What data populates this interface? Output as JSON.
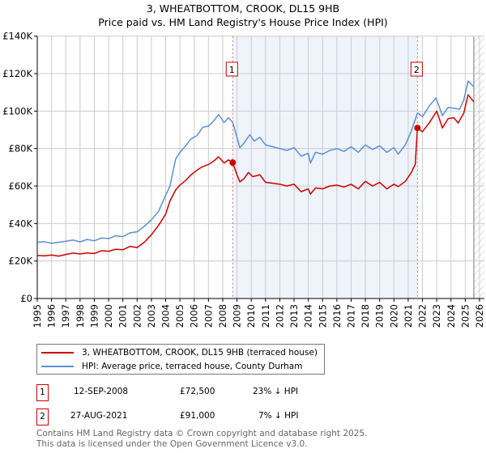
{
  "header": {
    "title": "3, WHEATBOTTOM, CROOK, DL15 9HB",
    "subtitle": "Price paid vs. HM Land Registry's House Price Index (HPI)"
  },
  "chart_data": {
    "type": "line",
    "title": "3, WHEATBOTTOM, CROOK, DL15 9HB",
    "subtitle": "Price paid vs. HM Land Registry's House Price Index (HPI)",
    "xlim": [
      1995,
      2026
    ],
    "ylim": [
      0,
      140000
    ],
    "x_ticks": [
      "1995",
      "1996",
      "1997",
      "1998",
      "1999",
      "2000",
      "2001",
      "2002",
      "2003",
      "2004",
      "2005",
      "2006",
      "2007",
      "2008",
      "2009",
      "2010",
      "2011",
      "2012",
      "2013",
      "2014",
      "2015",
      "2016",
      "2017",
      "2018",
      "2019",
      "2020",
      "2021",
      "2022",
      "2023",
      "2024",
      "2025",
      "2026"
    ],
    "y_ticks": [
      {
        "v": 0,
        "label": "£0"
      },
      {
        "v": 20000,
        "label": "£20K"
      },
      {
        "v": 40000,
        "label": "£40K"
      },
      {
        "v": 60000,
        "label": "£60K"
      },
      {
        "v": 80000,
        "label": "£80K"
      },
      {
        "v": 100000,
        "label": "£100K"
      },
      {
        "v": 120000,
        "label": "£120K"
      },
      {
        "v": 140000,
        "label": "£140K"
      }
    ],
    "grid": true,
    "shaded_period": [
      2008.7,
      2021.65
    ],
    "forecast_hatch_from": 2025.6,
    "series": [
      {
        "name": "3, WHEATBOTTOM, CROOK, DL15 9HB (terraced house)",
        "color": "#cc0000",
        "x": [
          1995,
          1995.5,
          1996,
          1996.5,
          1997,
          1997.5,
          1998,
          1998.5,
          1999,
          1999.5,
          2000,
          2000.5,
          2001,
          2001.5,
          2002,
          2002.5,
          2003,
          2003.5,
          2004,
          2004.3,
          2004.7,
          2005,
          2005.4,
          2005.75,
          2006.2,
          2006.6,
          2007,
          2007.4,
          2007.7,
          2008.1,
          2008.4,
          2008.7,
          2009,
          2009.2,
          2009.5,
          2009.8,
          2010.1,
          2010.6,
          2011,
          2011.5,
          2012,
          2012.5,
          2013,
          2013.5,
          2014,
          2014.15,
          2014.5,
          2015,
          2015.5,
          2016,
          2016.5,
          2017,
          2017.5,
          2018,
          2018.5,
          2019,
          2019.5,
          2020,
          2020.3,
          2020.8,
          2021.2,
          2021.5,
          2021.65,
          2022,
          2022.5,
          2023,
          2023.4,
          2023.8,
          2024.2,
          2024.5,
          2024.9,
          2025.2,
          2025.6
        ],
        "y": [
          23000,
          22800,
          23200,
          22600,
          23500,
          24200,
          23800,
          24300,
          24000,
          25500,
          25200,
          26300,
          26000,
          27800,
          27200,
          30000,
          34000,
          39000,
          45000,
          52000,
          57900,
          60500,
          63000,
          65800,
          68500,
          70400,
          71500,
          73500,
          75600,
          72300,
          74000,
          72500,
          66000,
          62200,
          64000,
          67300,
          65000,
          66000,
          62000,
          61500,
          61000,
          60000,
          61000,
          57000,
          58500,
          55700,
          59000,
          58500,
          60000,
          60500,
          59500,
          61000,
          58500,
          62500,
          60000,
          62000,
          58500,
          61000,
          59700,
          62500,
          67000,
          71700,
          91000,
          89000,
          94000,
          100000,
          91000,
          96000,
          96500,
          93700,
          99000,
          108700,
          105000
        ]
      },
      {
        "name": "HPI: Average price, terraced house, County Durham",
        "color": "#5b8fd4",
        "x": [
          1995,
          1995.5,
          1996,
          1996.5,
          1997,
          1997.5,
          1998,
          1998.5,
          1999,
          1999.5,
          2000,
          2000.5,
          2001,
          2001.5,
          2002,
          2002.5,
          2003,
          2003.5,
          2004,
          2004.3,
          2004.7,
          2005,
          2005.4,
          2005.75,
          2006.2,
          2006.6,
          2007,
          2007.4,
          2007.7,
          2008.1,
          2008.4,
          2008.7,
          2009,
          2009.2,
          2009.5,
          2009.9,
          2010.2,
          2010.6,
          2011,
          2011.5,
          2012,
          2012.5,
          2013,
          2013.5,
          2014,
          2014.15,
          2014.5,
          2015,
          2015.5,
          2016,
          2016.5,
          2017,
          2017.5,
          2018,
          2018.5,
          2019,
          2019.5,
          2020,
          2020.3,
          2020.8,
          2021.2,
          2021.65,
          2022,
          2022.5,
          2022.95,
          2023.4,
          2023.8,
          2024.2,
          2024.6,
          2024.9,
          2025.2,
          2025.6
        ],
        "y": [
          30000,
          30300,
          29500,
          30000,
          30500,
          31200,
          30200,
          31500,
          30800,
          32300,
          32000,
          33500,
          33000,
          35000,
          35600,
          38500,
          42000,
          46500,
          55000,
          60000,
          74400,
          78000,
          81500,
          85000,
          87000,
          91400,
          92000,
          95000,
          98200,
          93900,
          96500,
          94000,
          86000,
          80500,
          83000,
          87400,
          84000,
          86000,
          82000,
          81000,
          80000,
          79000,
          80500,
          76000,
          77500,
          72300,
          78000,
          77000,
          79000,
          80000,
          78500,
          81000,
          78000,
          82000,
          79500,
          81500,
          78000,
          80500,
          77000,
          82000,
          89000,
          99000,
          97000,
          103000,
          107000,
          97600,
          102000,
          101500,
          101000,
          106000,
          116000,
          113000
        ]
      }
    ],
    "sales": [
      {
        "id": "1",
        "x": 2008.7,
        "y": 72500,
        "date": "12-SEP-2008",
        "price": "£72,500",
        "delta": "23% ↓ HPI"
      },
      {
        "id": "2",
        "x": 2021.65,
        "y": 91000,
        "date": "27-AUG-2021",
        "price": "£91,000",
        "delta": "7% ↓ HPI"
      }
    ]
  },
  "legend": {
    "items": [
      {
        "label": "3, WHEATBOTTOM, CROOK, DL15 9HB (terraced house)",
        "color": "#cc0000"
      },
      {
        "label": "HPI: Average price, terraced house, County Durham",
        "color": "#5b8fd4"
      }
    ]
  },
  "footer": {
    "line1": "Contains HM Land Registry data © Crown copyright and database right 2025.",
    "line2": "This data is licensed under the Open Government Licence v3.0."
  }
}
